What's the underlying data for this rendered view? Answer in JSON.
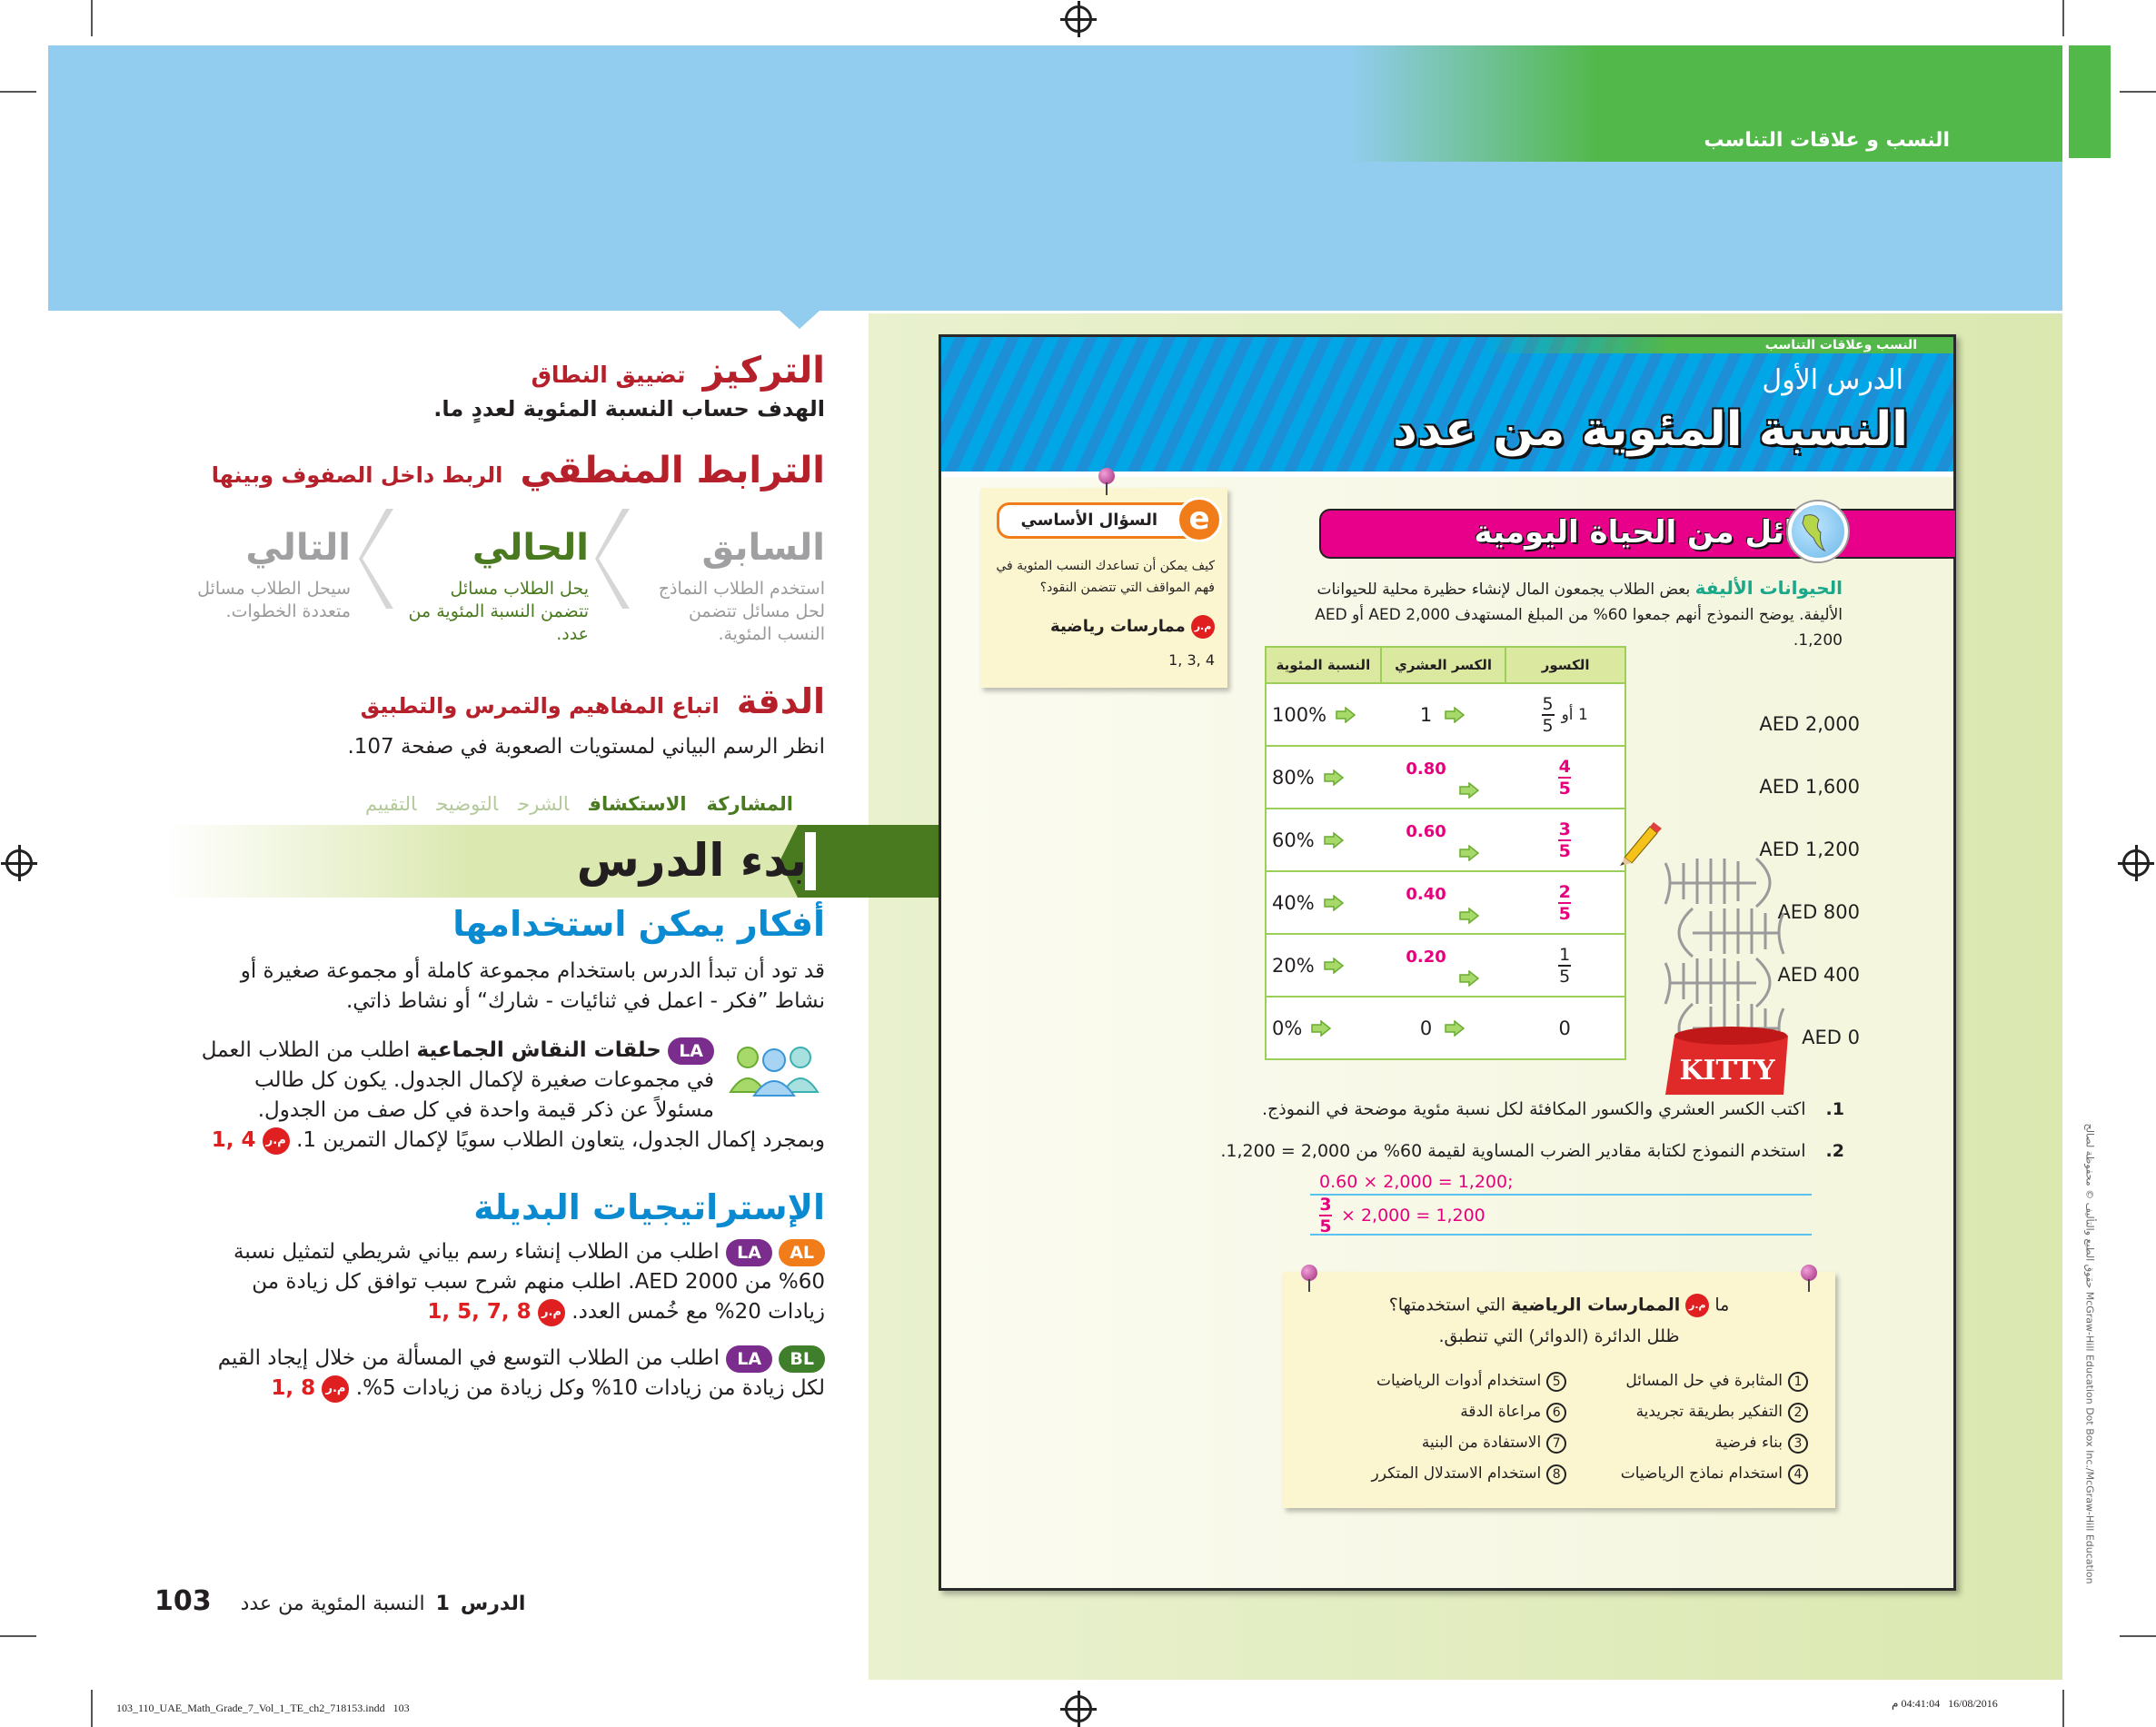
{
  "header": {
    "chapter_title": "النسب و علاقات التناسب"
  },
  "left": {
    "focus": {
      "label": "التركيز",
      "value": "تضييق النطاق"
    },
    "goal": {
      "label": "الهدف",
      "value": "حساب النسبة المئوية لعددٍ ما."
    },
    "coherence": {
      "label": "الترابط المنطقي",
      "value": "الربط داخل الصفوف وبينها"
    },
    "progression": [
      {
        "title": "السابق",
        "text": "استخدم الطلاب النماذج لحل مسائل تتضمن النسب المئوية."
      },
      {
        "title": "الحالي",
        "text": "يحل الطلاب مسائل تتضمن النسبة المئوية من عدد."
      },
      {
        "title": "التالي",
        "text": "سيحل الطلاب مسائل متعددة الخطوات."
      }
    ],
    "rigor": {
      "label": "الدقة",
      "value": "اتباع المفاهيم والتمرس والتطبيق"
    },
    "rigor_note": "انظر الرسم البياني لمستويات الصعوبة في صفحة 107.",
    "phases": [
      {
        "label": "المشاركة",
        "active": true
      },
      {
        "label": "الاستكشاف",
        "active": true
      },
      {
        "label": "الشرح",
        "active": false
      },
      {
        "label": "التوضيح",
        "active": false
      },
      {
        "label": "التقييم",
        "active": false
      }
    ],
    "launch": {
      "number": "1",
      "title": "بدء الدرس"
    },
    "ideas": {
      "title": "أفكار يمكن استخدامها",
      "text": "قد تود أن تبدأ الدرس باستخدام مجموعة كاملة أو مجموعة صغيرة أو نشاط ”فكر - اعمل في ثنائيات - شارك“ أو نشاط ذاتي."
    },
    "group": {
      "badge": "LA",
      "title": "حلقات النقاش الجماعية",
      "text": "اطلب من الطلاب العمل في مجموعات صغيرة لإكمال الجدول. يكون كل طالب مسئولاً عن ذكر قيمة واحدة في كل صف من الجدول. وبمجرد إكمال الجدول، يتعاون الطلاب سويًا لإكمال التمرين 1.",
      "mp_badge": "م.ر",
      "mp_refs": "1, 4"
    },
    "alt": {
      "title": "الإستراتيجيات البديلة",
      "items": [
        {
          "badges": [
            "AL",
            "LA"
          ],
          "text": "اطلب من الطلاب إنشاء رسم بياني شريطي لتمثيل نسبة 60% من AED 2000. اطلب منهم شرح سبب توافق كل زيادة من زيادات 20% مع خُمس العدد.",
          "mp_badge": "م.ر",
          "mp_refs": "1, 5, 7, 8"
        },
        {
          "badges": [
            "BL",
            "LA"
          ],
          "text": "اطلب من الطلاب التوسع في المسألة من خلال إيجاد القيم لكل زيادة من زيادات 10% وكل زيادة من زيادات 5%.",
          "mp_badge": "م.ر",
          "mp_refs": "1, 8"
        }
      ]
    },
    "footer": {
      "lesson_label": "الدرس",
      "lesson_number": "1",
      "lesson_title": "النسبة المئوية من عدد",
      "page_number": "103"
    }
  },
  "student": {
    "strip": "النسب وعلاقات التناسب",
    "lesson_label": "الدرس الأول",
    "title": "النسبة المئوية من عدد",
    "essential_question": {
      "label": "السؤال الأساسي",
      "text": "كيف يمكن أن تساعدك النسب المئوية في فهم المواقف التي تتضمن النقود؟",
      "mp_badge": "م.ر",
      "mp_label": "ممارسات رياضية",
      "mp_refs": "1, 3, 4"
    },
    "real_world": {
      "title": "مسائل من الحياة اليومية",
      "topic": "الحيوانات الأليفة",
      "text": "بعض الطلاب يجمعون المال لإنشاء حظيرة محلية للحيوانات الأليفة. يوضح النموذج أنهم جمعوا 60% من المبلغ المستهدف AED 2,000 أو AED 1,200."
    },
    "table": {
      "headers": [
        "الكسور",
        "الكسر العشري",
        "النسبة المئوية"
      ],
      "rows": [
        {
          "fraction_prefix": "1 أو",
          "num": "5",
          "den": "5",
          "fraction_answer": false,
          "decimal": "1",
          "decimal_answer": false,
          "percent": "100%"
        },
        {
          "num": "4",
          "den": "5",
          "fraction_answer": true,
          "decimal": "0.80",
          "decimal_answer": true,
          "percent": "80%"
        },
        {
          "num": "3",
          "den": "5",
          "fraction_answer": true,
          "decimal": "0.60",
          "decimal_answer": true,
          "percent": "60%"
        },
        {
          "num": "2",
          "den": "5",
          "fraction_answer": true,
          "decimal": "0.40",
          "decimal_answer": true,
          "percent": "40%"
        },
        {
          "num": "1",
          "den": "5",
          "fraction_answer": false,
          "decimal": "0.20",
          "decimal_answer": true,
          "percent": "20%"
        },
        {
          "fraction_whole": "0",
          "fraction_answer": false,
          "decimal": "0",
          "decimal_answer": false,
          "percent": "0%"
        }
      ]
    },
    "bar_labels": [
      "AED 2,000",
      "AED 1,600",
      "AED 1,200",
      "AED 800",
      "AED 400",
      "AED 0"
    ],
    "bowl_label": "KITTY",
    "exercises": [
      {
        "number": "1.",
        "text": "اكتب الكسر العشري والكسور المكافئة لكل نسبة مئوية موضحة في النموذج."
      },
      {
        "number": "2.",
        "text": "استخدم النموذج لكتابة مقادير الضرب المساوية لقيمة 60% من 2,000 = 1,200."
      }
    ],
    "answers": {
      "line1": "0.60 × 2,000 = 1,200;",
      "line2_num": "3",
      "line2_den": "5",
      "line2_rest": "× 2,000 = 1,200"
    },
    "practices": {
      "prefix": "ما",
      "badge": "م.ر",
      "bold": "الممارسات الرياضية",
      "suffix": "التي استخدمتها؟",
      "instruction": "ظلل الدائرة (الدوائر) التي تنطبق.",
      "items": [
        {
          "n": "1",
          "label": "المثابرة في حل المسائل"
        },
        {
          "n": "2",
          "label": "التفكير بطريقة تجريدية"
        },
        {
          "n": "3",
          "label": "بناء فرضية"
        },
        {
          "n": "4",
          "label": "استخدام نماذج الرياضيات"
        },
        {
          "n": "5",
          "label": "استخدام أدوات الرياضيات"
        },
        {
          "n": "6",
          "label": "مراعاة الدقة"
        },
        {
          "n": "7",
          "label": "الاستفادة من البنية"
        },
        {
          "n": "8",
          "label": "استخدام الاستدلال المتكرر"
        }
      ]
    },
    "credit": "حقوق الطبع والتأليف © محفوظة لصالح McGraw-Hill Education    Dot Box Inc./McGraw-Hill Education"
  },
  "colors": {
    "heading_red": "#b5202a",
    "current_green": "#4a7a1f",
    "heading_blue": "#0a8ad0",
    "answer_pink": "#e6007e",
    "header_blue": "#92cdf0",
    "header_green": "#52b84a"
  },
  "print": {
    "file": "103_110_UAE_Math_Grade_7_Vol_1_TE_ch2_718153.indd   103",
    "timestamp": "16/08/2016   04:41:04 م"
  }
}
